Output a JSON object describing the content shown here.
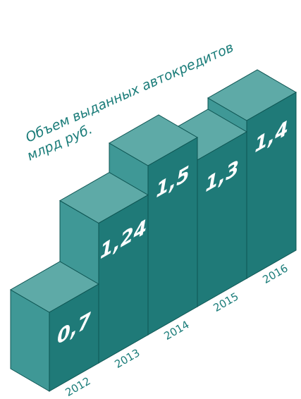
{
  "chart_data": {
    "type": "bar3d",
    "title": "Объем выданных автокредитов",
    "subtitle": "млрд руб.",
    "categories": [
      "2012",
      "2013",
      "2014",
      "2015",
      "2016"
    ],
    "values": [
      0.7,
      1.24,
      1.5,
      1.3,
      1.4
    ],
    "value_labels": [
      "0,7",
      "1,24",
      "1,5",
      "1,3",
      "1,4"
    ],
    "color": "#1f7a78"
  }
}
